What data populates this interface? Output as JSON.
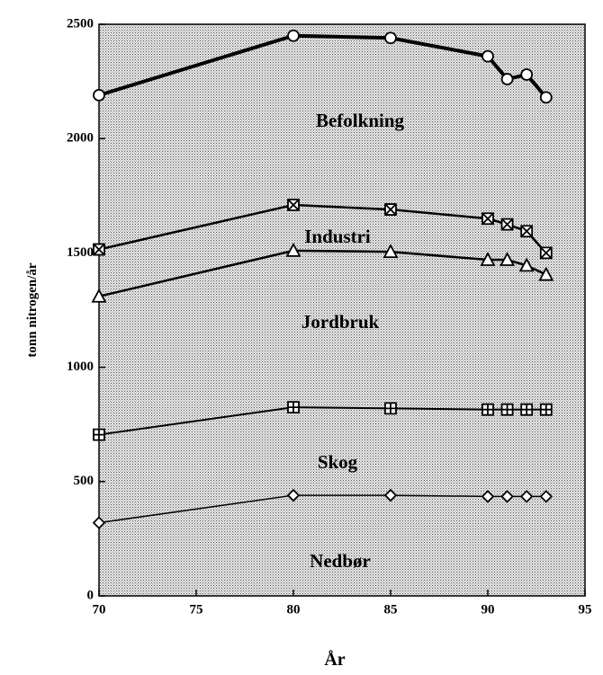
{
  "chart_data": {
    "type": "line",
    "x_label": "År",
    "y_label": "tonn nitrogen/år",
    "x": [
      70,
      80,
      85,
      90,
      91,
      92,
      93
    ],
    "xlim": [
      70,
      95
    ],
    "xticks": [
      70,
      75,
      80,
      85,
      90,
      95
    ],
    "ylim": [
      0,
      2500
    ],
    "yticks": [
      0,
      500,
      1000,
      1500,
      2000,
      2500
    ],
    "series": [
      {
        "name": "Befolkning",
        "color": "#000000",
        "marker": "circle",
        "line_width": 4,
        "values": [
          2190,
          2450,
          2440,
          2360,
          2260,
          2280,
          2180
        ]
      },
      {
        "name": "Industri",
        "color": "#000000",
        "marker": "bowtie",
        "line_width": 2.5,
        "values": [
          1515,
          1710,
          1690,
          1650,
          1625,
          1595,
          1500
        ]
      },
      {
        "name": "Jordbruk",
        "color": "#000000",
        "marker": "triangle",
        "line_width": 2.5,
        "values": [
          1310,
          1510,
          1505,
          1470,
          1470,
          1445,
          1405
        ]
      },
      {
        "name": "Skog",
        "color": "#000000",
        "marker": "square",
        "line_width": 2,
        "values": [
          705,
          825,
          820,
          815,
          815,
          815,
          815
        ]
      },
      {
        "name": "Nedbør",
        "color": "#000000",
        "marker": "diamond",
        "line_width": 1.5,
        "values": [
          320,
          440,
          440,
          435,
          435,
          435,
          435
        ]
      }
    ]
  }
}
